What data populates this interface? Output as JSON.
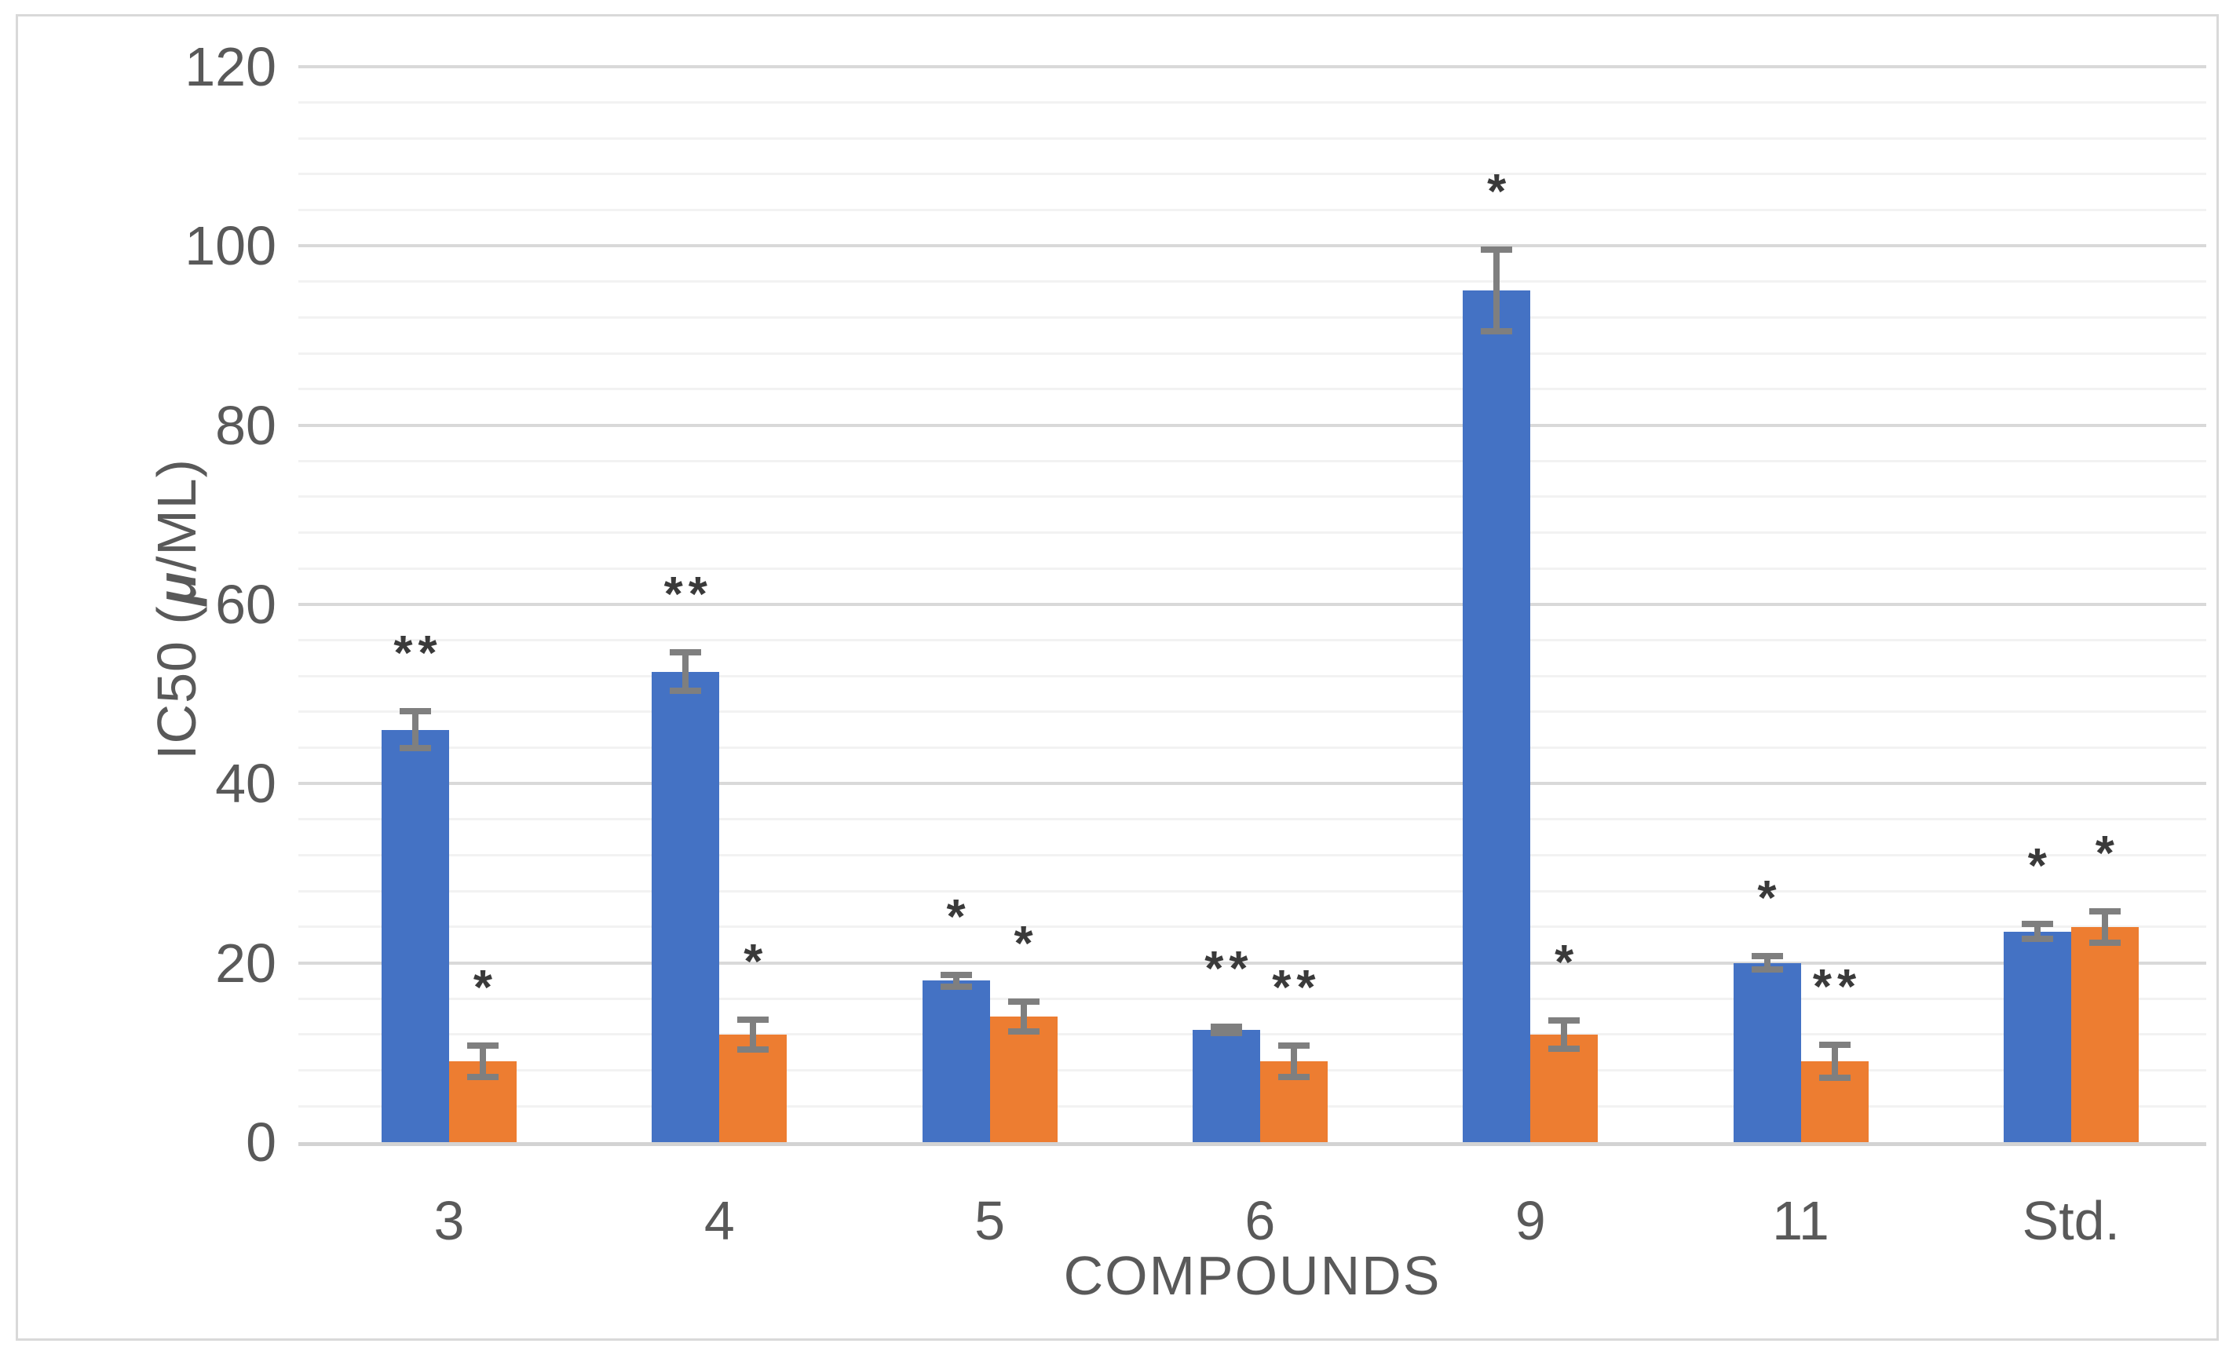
{
  "figure": {
    "background": "#FFFFFF",
    "border_color": "#D9D9D9"
  },
  "chart_data": {
    "type": "bar",
    "title": "",
    "xlabel": "COMPOUNDS",
    "ylabel": "IC50 (μ/ML)",
    "ylabel_parts": {
      "prefix": "IC50 (",
      "mu": "μ",
      "suffix": "/ML)"
    },
    "categories": [
      "3",
      "4",
      "5",
      "6",
      "9",
      "11",
      "Std."
    ],
    "series": [
      {
        "name": "blue",
        "color": "#4472C4",
        "values": [
          46,
          52.5,
          18,
          12.5,
          95,
          20,
          23.5
        ],
        "errors": [
          2.4,
          2.5,
          1.0,
          0.7,
          4.9,
          1.1,
          1.2
        ],
        "annotations": [
          "**",
          "**",
          "*",
          "**",
          "*",
          "*",
          "*"
        ]
      },
      {
        "name": "orange",
        "color": "#ED7D31",
        "values": [
          9,
          12,
          14,
          9,
          12,
          9,
          24
        ],
        "errors": [
          2.1,
          2.0,
          2.0,
          2.1,
          1.9,
          2.2,
          2.1
        ],
        "annotations": [
          "*",
          "*",
          "*",
          "**",
          "*",
          "**",
          "*"
        ]
      }
    ],
    "ylim": [
      0,
      120
    ],
    "y_major_unit": 20,
    "y_minor_unit": 4,
    "y_ticks": [
      "0",
      "20",
      "40",
      "60",
      "80",
      "100",
      "120"
    ],
    "grid": true,
    "legend": "none",
    "error_bar_color": "#7F7F7F",
    "annotation_color": "#3A3A3A",
    "major_grid_color": "#D9D9D9",
    "minor_grid_color": "#F2F2F2",
    "axis_line_color": "#D3D3D3",
    "text_color": "#595959"
  }
}
